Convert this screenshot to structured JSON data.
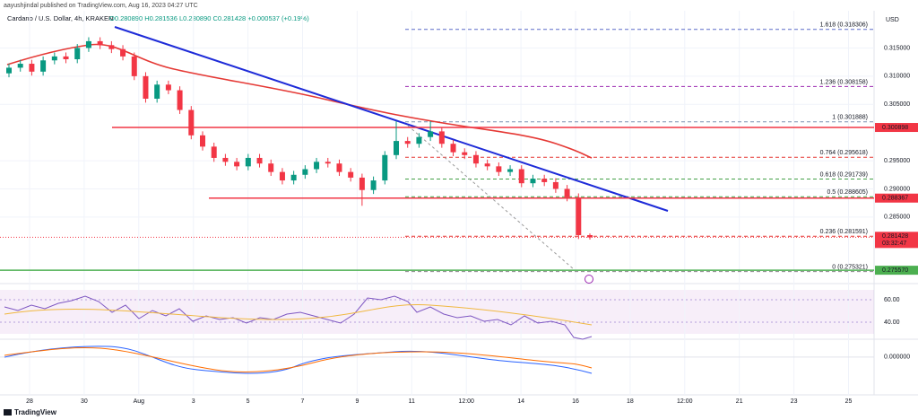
{
  "author_line": "aayushjindal published on TradingView.com, Aug 16, 2023 04:27 UTC",
  "footer": "TradingView",
  "chart_data": {
    "type": "candlestick",
    "title": "Cardano / U.S. Dollar, 4h, KRAKEN",
    "ohlc_line": "O0.280890 H0.281536 L0.280890 C0.281428 +0.000537 (+0.19%)",
    "currency": "USD",
    "up_color": "#089981",
    "down_color": "#f23645",
    "x_labels": [
      "28",
      "30",
      "Aug",
      "3",
      "5",
      "7",
      "9",
      "11",
      "12:00",
      "14",
      "16",
      "18",
      "12:00",
      "21",
      "23",
      "25"
    ],
    "open": [
      0.3105,
      0.3115,
      0.3122,
      0.3108,
      0.3128,
      0.3135,
      0.313,
      0.315,
      0.3162,
      0.3155,
      0.3148,
      0.3135,
      0.31,
      0.306,
      0.3085,
      0.3075,
      0.304,
      0.2995,
      0.2975,
      0.2955,
      0.2948,
      0.294,
      0.2955,
      0.2945,
      0.293,
      0.2915,
      0.2925,
      0.2935,
      0.2948,
      0.2945,
      0.293,
      0.292,
      0.2898,
      0.2915,
      0.296,
      0.2985,
      0.298,
      0.2992,
      0.3002,
      0.298,
      0.2965,
      0.296,
      0.2945,
      0.294,
      0.293,
      0.2935,
      0.291,
      0.2918,
      0.2912,
      0.29,
      0.2885,
      0.2818
    ],
    "high": [
      0.3122,
      0.3129,
      0.3129,
      0.3135,
      0.3142,
      0.3142,
      0.3157,
      0.3169,
      0.3169,
      0.3162,
      0.3155,
      0.3142,
      0.3107,
      0.3092,
      0.3092,
      0.3082,
      0.3047,
      0.3002,
      0.2982,
      0.2962,
      0.2955,
      0.2962,
      0.2962,
      0.2952,
      0.2937,
      0.2932,
      0.2942,
      0.2955,
      0.2955,
      0.2952,
      0.2937,
      0.2927,
      0.2922,
      0.2967,
      0.302,
      0.2992,
      0.2999,
      0.302,
      0.3009,
      0.2987,
      0.2972,
      0.2967,
      0.2952,
      0.2947,
      0.2942,
      0.2942,
      0.2925,
      0.2925,
      0.2919,
      0.2907,
      0.2892,
      0.2821
    ],
    "low": [
      0.3098,
      0.3108,
      0.3101,
      0.3101,
      0.3121,
      0.3123,
      0.3123,
      0.3143,
      0.3148,
      0.3141,
      0.3128,
      0.3093,
      0.3053,
      0.3053,
      0.3068,
      0.3033,
      0.2988,
      0.2968,
      0.2948,
      0.2941,
      0.2933,
      0.2933,
      0.2938,
      0.2923,
      0.2908,
      0.2908,
      0.2918,
      0.2928,
      0.2938,
      0.2923,
      0.2913,
      0.287,
      0.2891,
      0.2908,
      0.2953,
      0.2973,
      0.2973,
      0.2985,
      0.2973,
      0.2958,
      0.2953,
      0.2938,
      0.2933,
      0.2923,
      0.2923,
      0.2903,
      0.2903,
      0.2905,
      0.2893,
      0.2878,
      0.2811,
      0.281
    ],
    "close": [
      0.3115,
      0.3122,
      0.3108,
      0.3128,
      0.3135,
      0.313,
      0.315,
      0.3162,
      0.3155,
      0.3148,
      0.3135,
      0.31,
      0.306,
      0.3085,
      0.3075,
      0.304,
      0.2995,
      0.2975,
      0.2955,
      0.2948,
      0.294,
      0.2955,
      0.2945,
      0.293,
      0.2915,
      0.2925,
      0.2935,
      0.2948,
      0.2945,
      0.293,
      0.292,
      0.2898,
      0.2915,
      0.296,
      0.2985,
      0.298,
      0.2992,
      0.3002,
      0.298,
      0.2965,
      0.296,
      0.2945,
      0.294,
      0.293,
      0.2935,
      0.291,
      0.2918,
      0.2912,
      0.29,
      0.2885,
      0.2818,
      0.2814
    ],
    "ylim": [
      0.2732,
      0.3216
    ],
    "yticks": [
      {
        "value": 0.315,
        "label": "0.315000"
      },
      {
        "value": 0.31,
        "label": "0.310000"
      },
      {
        "value": 0.305,
        "label": "0.305000"
      },
      {
        "value": 0.295,
        "label": "0.295000"
      },
      {
        "value": 0.29,
        "label": "0.290000"
      },
      {
        "value": 0.285,
        "label": "0.285000"
      }
    ],
    "price_levels": [
      {
        "value": 0.300898,
        "label": "0.300898",
        "color": "#f23645"
      },
      {
        "value": 0.288367,
        "label": "0.288367",
        "color": "#f23645"
      },
      {
        "value": 0.27557,
        "label": "0.275570",
        "color": "#4caf50"
      }
    ],
    "last_price": {
      "value": 0.281428,
      "label": "0.281428",
      "countdown": "03:32:47",
      "color": "#f23645"
    },
    "fib_levels": [
      {
        "value": 0.318306,
        "label": "1.618 (0.318306)",
        "color": "#5b6cc9"
      },
      {
        "value": 0.308158,
        "label": "1.236 (0.308158)",
        "color": "#9c27b0"
      },
      {
        "value": 0.301888,
        "label": "1 (0.301888)",
        "color": "#7a8fb0"
      },
      {
        "value": 0.295618,
        "label": "0.764 (0.295618)",
        "color": "#e53935"
      },
      {
        "value": 0.291739,
        "label": "0.618 (0.291739)",
        "color": "#43a047"
      },
      {
        "value": 0.288605,
        "label": "0.5 (0.288605)",
        "color": "#43a047"
      },
      {
        "value": 0.281591,
        "label": "0.236 (0.281591)",
        "color": "#e53935"
      },
      {
        "value": 0.275321,
        "label": "0 (0.275321)",
        "color": "#888888"
      }
    ],
    "rsi_ylim": [
      16.8,
      72.8
    ],
    "rsi_ticks": [
      {
        "value": 60,
        "label": "60.00"
      },
      {
        "value": 40,
        "label": "40.00"
      }
    ],
    "macd_ylim": [
      -0.004,
      0.0015
    ],
    "macd_ticks": [
      {
        "value": 0,
        "label": "0.000000"
      }
    ]
  }
}
